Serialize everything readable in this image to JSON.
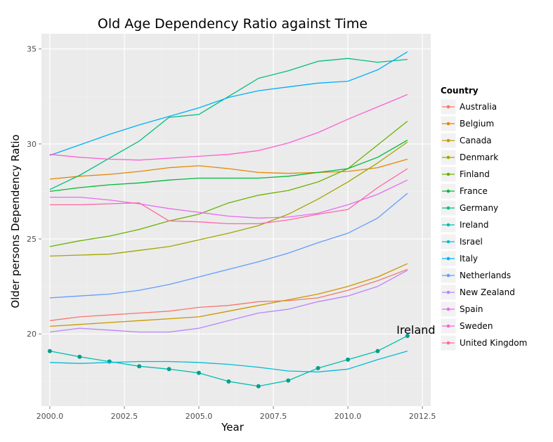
{
  "chart_data": {
    "type": "line",
    "title": "Old Age Dependency Ratio against Time",
    "xlabel": "Year",
    "ylabel": "Older persons Dependency Ratio",
    "xlim": [
      1999.72,
      2012.78
    ],
    "ylim": [
      16.2,
      35.8
    ],
    "x_ticks": [
      2000.0,
      2002.5,
      2005.0,
      2007.5,
      2010.0,
      2012.5
    ],
    "x_tick_labels": [
      "2000.0",
      "2002.5",
      "2005.0",
      "2007.5",
      "2010.0",
      "2012.5"
    ],
    "y_ticks": [
      20,
      25,
      30,
      35
    ],
    "y_tick_labels": [
      "20",
      "25",
      "30",
      "35"
    ],
    "grid": true,
    "legend": {
      "title": "Country",
      "position": "right"
    },
    "x": [
      2000,
      2001,
      2002,
      2003,
      2004,
      2005,
      2006,
      2007,
      2008,
      2009,
      2010,
      2011,
      2012
    ],
    "highlighted_series": "Ireland",
    "annotations": [
      {
        "text": "Ireland",
        "x": 2012,
        "y": 19.9
      }
    ],
    "series": [
      {
        "name": "Australia",
        "color": "#F8766D",
        "values": [
          20.7,
          20.9,
          21.0,
          21.1,
          21.2,
          21.4,
          21.5,
          21.7,
          21.75,
          21.9,
          22.3,
          22.8,
          23.4
        ]
      },
      {
        "name": "Belgium",
        "color": "#E58700",
        "values": [
          28.15,
          28.3,
          28.4,
          28.55,
          28.75,
          28.85,
          28.7,
          28.5,
          28.45,
          28.5,
          28.55,
          28.75,
          29.2
        ]
      },
      {
        "name": "Canada",
        "color": "#C99800",
        "values": [
          20.4,
          20.5,
          20.6,
          20.7,
          20.8,
          20.9,
          21.2,
          21.5,
          21.8,
          22.1,
          22.5,
          23.0,
          23.7
        ]
      },
      {
        "name": "Denmark",
        "color": "#A3A500",
        "values": [
          24.1,
          24.15,
          24.2,
          24.4,
          24.6,
          24.95,
          25.3,
          25.7,
          26.3,
          27.1,
          28.0,
          29.0,
          30.1
        ]
      },
      {
        "name": "Finland",
        "color": "#6BB100",
        "values": [
          24.6,
          24.9,
          25.15,
          25.5,
          25.95,
          26.3,
          26.9,
          27.3,
          27.55,
          28.0,
          28.7,
          29.95,
          31.2
        ]
      },
      {
        "name": "France",
        "color": "#00BA38",
        "values": [
          27.5,
          27.7,
          27.85,
          27.95,
          28.1,
          28.2,
          28.2,
          28.2,
          28.3,
          28.5,
          28.7,
          29.3,
          30.2
        ]
      },
      {
        "name": "Germany",
        "color": "#00BF7D",
        "values": [
          27.6,
          28.35,
          29.25,
          30.15,
          31.4,
          31.55,
          32.5,
          33.45,
          33.85,
          34.35,
          34.5,
          34.3,
          34.45
        ]
      },
      {
        "name": "Ireland",
        "color": "#00C0AF",
        "values": [
          19.1,
          18.8,
          18.55,
          18.3,
          18.15,
          17.95,
          17.5,
          17.25,
          17.55,
          18.2,
          18.65,
          19.1,
          19.9
        ]
      },
      {
        "name": "Israel",
        "color": "#00BCD8",
        "values": [
          18.5,
          18.45,
          18.5,
          18.55,
          18.55,
          18.5,
          18.4,
          18.25,
          18.05,
          18.0,
          18.15,
          18.65,
          19.1
        ]
      },
      {
        "name": "Italy",
        "color": "#00B0F6",
        "values": [
          29.4,
          29.95,
          30.5,
          31.0,
          31.45,
          31.9,
          32.45,
          32.8,
          33.0,
          33.2,
          33.3,
          33.9,
          34.85
        ]
      },
      {
        "name": "Netherlands",
        "color": "#619CFF",
        "values": [
          21.9,
          22.0,
          22.1,
          22.3,
          22.6,
          23.0,
          23.4,
          23.8,
          24.25,
          24.8,
          25.3,
          26.1,
          27.4
        ]
      },
      {
        "name": "New Zealand",
        "color": "#B983FF",
        "values": [
          20.1,
          20.3,
          20.2,
          20.1,
          20.1,
          20.3,
          20.7,
          21.1,
          21.3,
          21.7,
          22.0,
          22.5,
          23.35
        ]
      },
      {
        "name": "Spain",
        "color": "#E76BF3",
        "values": [
          27.2,
          27.2,
          27.05,
          26.85,
          26.6,
          26.4,
          26.2,
          26.1,
          26.15,
          26.35,
          26.8,
          27.35,
          28.1
        ]
      },
      {
        "name": "Sweden",
        "color": "#FD61D1",
        "values": [
          29.45,
          29.3,
          29.2,
          29.15,
          29.25,
          29.35,
          29.45,
          29.65,
          30.05,
          30.6,
          31.3,
          31.95,
          32.6
        ]
      },
      {
        "name": "United Kingdom",
        "color": "#FF67A4",
        "values": [
          26.8,
          26.8,
          26.85,
          26.9,
          25.95,
          25.9,
          25.8,
          25.8,
          26.0,
          26.3,
          26.55,
          27.7,
          28.7
        ]
      }
    ]
  }
}
